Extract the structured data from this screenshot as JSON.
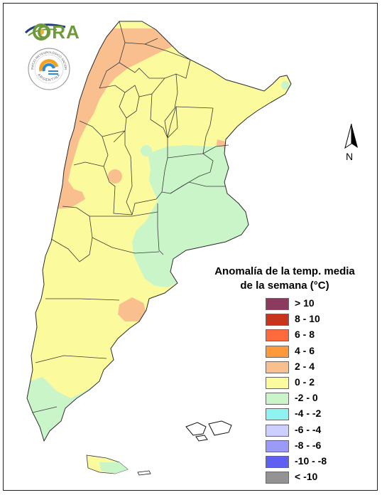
{
  "logo": {
    "ora_text": "ORA",
    "badge_text": "SERVICIO METEOROLÓGICO NACIONAL",
    "badge_country": "ARGENTINA"
  },
  "map": {
    "north_label": "N",
    "colors": {
      "above_10": "#8c3a5e",
      "8_10": "#c8341c",
      "6_8": "#ff6a3d",
      "4_6": "#ff9a3c",
      "2_4": "#f9bf8e",
      "0_2": "#fbfb9e",
      "m2_0": "#c9f5c9",
      "m4_m2": "#8ff3f1",
      "m6_m4": "#cccfff",
      "m8_m6": "#9a9af8",
      "m10_m8": "#5f5ff2",
      "below_m10": "#939393"
    }
  },
  "legend": {
    "title_line1": "Anomalía de la temp. media",
    "title_line2": "de la semana (°C)",
    "items": [
      {
        "label": "> 10",
        "color": "#8c3a5e"
      },
      {
        "label": "8 - 10",
        "color": "#c8341c"
      },
      {
        "label": "6 - 8",
        "color": "#ff6a3d"
      },
      {
        "label": "4 - 6",
        "color": "#ff9a3c"
      },
      {
        "label": "2 - 4",
        "color": "#f9bf8e"
      },
      {
        "label": "0 - 2",
        "color": "#fbfb9e"
      },
      {
        "label": "-2 - 0",
        "color": "#c9f5c9"
      },
      {
        "label": "-4 - -2",
        "color": "#8ff3f1"
      },
      {
        "label": "-6 - -4",
        "color": "#cccfff"
      },
      {
        "label": "-8 - -6",
        "color": "#9a9af8"
      },
      {
        "label": "-10 - -8",
        "color": "#5f5ff2"
      },
      {
        "label": "< -10",
        "color": "#939393"
      }
    ]
  }
}
